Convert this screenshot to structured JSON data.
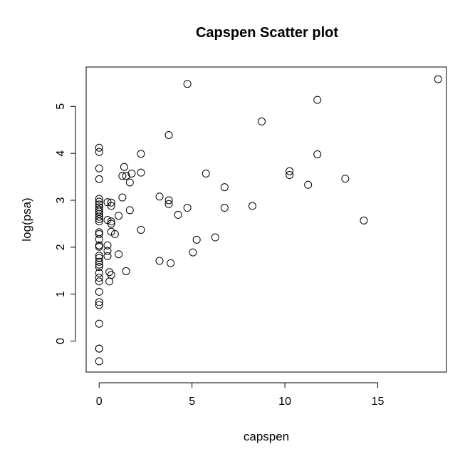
{
  "chart_data": {
    "type": "scatter",
    "title": "Capspen Scatter plot",
    "xlabel": "capspen",
    "ylabel": "log(psa)",
    "xlim": [
      -0.7,
      18.7
    ],
    "ylim": [
      -0.66,
      5.84
    ],
    "xticks": [
      0,
      5,
      10,
      15
    ],
    "yticks": [
      0,
      1,
      2,
      3,
      4,
      5
    ],
    "grid": false,
    "legend": "none",
    "colors": {
      "point_stroke": "#000000",
      "axis": "#000000",
      "background": "#ffffff"
    },
    "points": [
      {
        "x": 0,
        "y": -0.43
      },
      {
        "x": 0,
        "y": -0.16
      },
      {
        "x": 0,
        "y": -0.16
      },
      {
        "x": 0,
        "y": 0.37
      },
      {
        "x": 0,
        "y": 0.77
      },
      {
        "x": 0,
        "y": 0.83
      },
      {
        "x": 0,
        "y": 1.05
      },
      {
        "x": 0,
        "y": 1.27
      },
      {
        "x": 0,
        "y": 1.35
      },
      {
        "x": 0,
        "y": 1.45
      },
      {
        "x": 0,
        "y": 1.58
      },
      {
        "x": 0,
        "y": 1.63
      },
      {
        "x": 0,
        "y": 1.69
      },
      {
        "x": 0,
        "y": 1.77
      },
      {
        "x": 0,
        "y": 1.82
      },
      {
        "x": 0,
        "y": 2.01
      },
      {
        "x": 0,
        "y": 2.04
      },
      {
        "x": 0,
        "y": 2.17
      },
      {
        "x": 0,
        "y": 2.28
      },
      {
        "x": 0,
        "y": 2.32
      },
      {
        "x": 0,
        "y": 2.55
      },
      {
        "x": 0,
        "y": 2.6
      },
      {
        "x": 0,
        "y": 2.65
      },
      {
        "x": 0,
        "y": 2.71
      },
      {
        "x": 0,
        "y": 2.76
      },
      {
        "x": 0,
        "y": 2.8
      },
      {
        "x": 0,
        "y": 2.85
      },
      {
        "x": 0,
        "y": 2.91
      },
      {
        "x": 0,
        "y": 2.97
      },
      {
        "x": 0,
        "y": 3.03
      },
      {
        "x": 0,
        "y": 3.45
      },
      {
        "x": 0,
        "y": 3.68
      },
      {
        "x": 0,
        "y": 4.03
      },
      {
        "x": 0,
        "y": 4.12
      },
      {
        "x": 0.45,
        "y": 1.81
      },
      {
        "x": 0.45,
        "y": 1.92
      },
      {
        "x": 0.45,
        "y": 2.04
      },
      {
        "x": 0.45,
        "y": 2.58
      },
      {
        "x": 0.45,
        "y": 2.96
      },
      {
        "x": 0.55,
        "y": 1.27
      },
      {
        "x": 0.55,
        "y": 1.47
      },
      {
        "x": 0.65,
        "y": 1.41
      },
      {
        "x": 0.65,
        "y": 2.33
      },
      {
        "x": 0.65,
        "y": 2.5
      },
      {
        "x": 0.65,
        "y": 2.55
      },
      {
        "x": 0.65,
        "y": 2.88
      },
      {
        "x": 0.65,
        "y": 2.95
      },
      {
        "x": 0.85,
        "y": 2.28
      },
      {
        "x": 1.05,
        "y": 1.85
      },
      {
        "x": 1.05,
        "y": 2.67
      },
      {
        "x": 1.25,
        "y": 3.06
      },
      {
        "x": 1.25,
        "y": 3.52
      },
      {
        "x": 1.35,
        "y": 3.71
      },
      {
        "x": 1.45,
        "y": 1.49
      },
      {
        "x": 1.45,
        "y": 3.52
      },
      {
        "x": 1.65,
        "y": 2.79
      },
      {
        "x": 1.65,
        "y": 3.38
      },
      {
        "x": 1.75,
        "y": 3.57
      },
      {
        "x": 2.25,
        "y": 2.37
      },
      {
        "x": 2.25,
        "y": 3.59
      },
      {
        "x": 2.25,
        "y": 3.99
      },
      {
        "x": 3.25,
        "y": 1.71
      },
      {
        "x": 3.25,
        "y": 3.08
      },
      {
        "x": 3.75,
        "y": 2.92
      },
      {
        "x": 3.75,
        "y": 3.0
      },
      {
        "x": 3.75,
        "y": 4.39
      },
      {
        "x": 3.85,
        "y": 1.66
      },
      {
        "x": 4.25,
        "y": 2.69
      },
      {
        "x": 4.75,
        "y": 2.84
      },
      {
        "x": 4.75,
        "y": 5.48
      },
      {
        "x": 5.05,
        "y": 1.89
      },
      {
        "x": 5.25,
        "y": 2.16
      },
      {
        "x": 5.75,
        "y": 3.57
      },
      {
        "x": 6.25,
        "y": 2.21
      },
      {
        "x": 6.75,
        "y": 2.84
      },
      {
        "x": 6.75,
        "y": 3.28
      },
      {
        "x": 8.25,
        "y": 2.88
      },
      {
        "x": 8.75,
        "y": 4.68
      },
      {
        "x": 10.25,
        "y": 3.54
      },
      {
        "x": 10.25,
        "y": 3.62
      },
      {
        "x": 11.25,
        "y": 3.33
      },
      {
        "x": 11.75,
        "y": 3.98
      },
      {
        "x": 11.75,
        "y": 5.14
      },
      {
        "x": 13.25,
        "y": 3.46
      },
      {
        "x": 14.25,
        "y": 2.57
      },
      {
        "x": 18.25,
        "y": 5.58
      }
    ]
  }
}
